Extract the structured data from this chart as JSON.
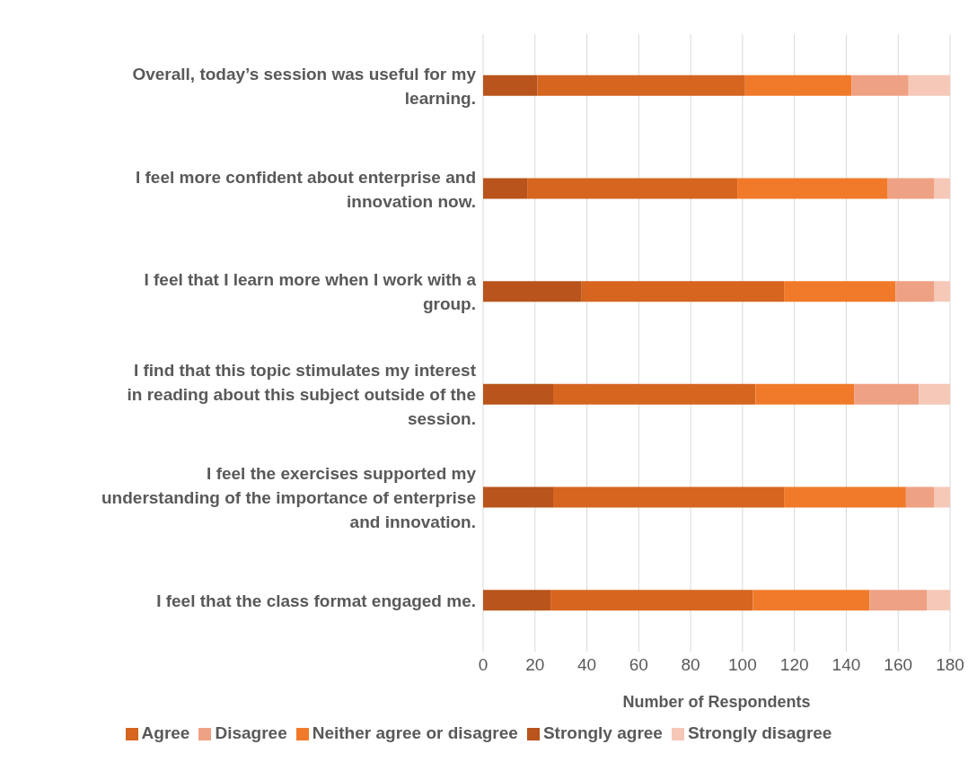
{
  "chart_data": {
    "type": "bar",
    "orientation": "horizontal",
    "stacked": true,
    "xlabel": "Number of Respondents",
    "categories": [
      "Overall, today’s session was useful for my learning.",
      "I feel more confident about enterprise and innovation now.",
      "I feel that I learn more when I work with a group.",
      "I find that this topic stimulates my interest in reading about this subject outside of the session.",
      "I feel the exercises supported my understanding of the importance of enterprise and innovation.",
      "I feel that the class format engaged me."
    ],
    "series": [
      {
        "name": "Strongly agree",
        "color": "#b8541c",
        "values": [
          21,
          17,
          38,
          27,
          27,
          26
        ]
      },
      {
        "name": "Agree",
        "color": "#d5651f",
        "values": [
          80,
          81,
          78,
          78,
          89,
          78
        ]
      },
      {
        "name": "Neither agree or disagree",
        "color": "#f07a2a",
        "values": [
          41,
          58,
          43,
          38,
          47,
          45
        ]
      },
      {
        "name": "Disagree",
        "color": "#efa184",
        "values": [
          22,
          18,
          15,
          25,
          11,
          22
        ]
      },
      {
        "name": "Strongly disagree",
        "color": "#f6c8b8",
        "values": [
          16,
          6,
          6,
          12,
          6,
          9
        ]
      }
    ],
    "xlim": [
      0,
      180
    ],
    "xticks": [
      0,
      20,
      40,
      60,
      80,
      100,
      120,
      140,
      160,
      180
    ],
    "grid": "x",
    "legend": "bottom"
  }
}
